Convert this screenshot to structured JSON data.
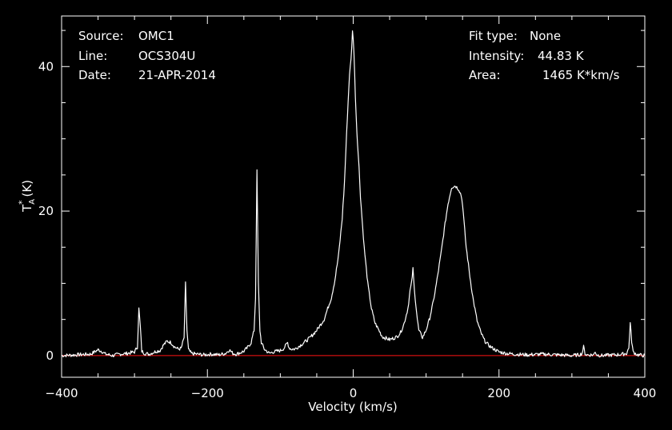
{
  "chart_data": {
    "type": "line",
    "xlabel": "Velocity (km/s)",
    "ylabel_main": "T",
    "ylabel_sub": "A",
    "ylabel_sup": "*",
    "ylabel_unit": "(K)",
    "xlim": [
      -400,
      400
    ],
    "ylim": [
      -3,
      47
    ],
    "xticks": [
      -400,
      -200,
      0,
      200,
      400
    ],
    "yticks": [
      0,
      20,
      40
    ],
    "grid": false,
    "colors": {
      "background": "#000000",
      "spectrum": "#ffffff",
      "baseline": "#d01010",
      "axes": "#ffffff"
    },
    "baseline_value": 0,
    "info_left": [
      {
        "key": "Source:",
        "value": "OMC1"
      },
      {
        "key": "Line:",
        "value": "OCS304U"
      },
      {
        "key": "Date:",
        "value": "21-APR-2014"
      }
    ],
    "info_right": [
      {
        "key": "Fit type:",
        "value": "None"
      },
      {
        "key": "Intensity:",
        "value": "44.83 K"
      },
      {
        "key": "Area:",
        "value": "1465 K*km/s"
      }
    ],
    "series": [
      {
        "x": [
          -400,
          -380,
          -360,
          -350,
          -345,
          -340,
          -330,
          -320,
          -310,
          -300,
          -296,
          -294,
          -292,
          -290,
          -286,
          -280,
          -270,
          -265,
          -260,
          -255,
          -250,
          -245,
          -240,
          -236,
          -232,
          -230,
          -228,
          -226,
          -222,
          -215,
          -205,
          -195,
          -185,
          -175,
          -170,
          -165,
          -160,
          -150,
          -145,
          -140,
          -136,
          -134,
          -132,
          -130,
          -128,
          -126,
          -122,
          -115,
          -110,
          -100,
          -95,
          -92,
          -90,
          -88,
          -85,
          -80,
          -70,
          -60,
          -50,
          -40,
          -30,
          -25,
          -20,
          -15,
          -12,
          -8,
          -5,
          -3,
          -1,
          0,
          1,
          3,
          5,
          8,
          10,
          15,
          20,
          25,
          30,
          40,
          50,
          60,
          65,
          70,
          75,
          78,
          80,
          82,
          84,
          86,
          88,
          90,
          95,
          100,
          105,
          110,
          115,
          120,
          125,
          130,
          135,
          140,
          145,
          148,
          150,
          152,
          155,
          160,
          165,
          170,
          175,
          180,
          185,
          190,
          195,
          200,
          210,
          220,
          240,
          260,
          280,
          300,
          310,
          314,
          316,
          318,
          320,
          330,
          332,
          334,
          340,
          360,
          370,
          375,
          378,
          380,
          382,
          384,
          390,
          400
        ],
        "y": [
          0.0,
          0.1,
          0.2,
          0.8,
          0.6,
          0.2,
          0.0,
          0.2,
          0.3,
          0.5,
          1.2,
          6.5,
          4.0,
          0.6,
          0.3,
          0.2,
          0.6,
          0.7,
          1.5,
          2.0,
          1.8,
          1.2,
          0.9,
          1.0,
          2.5,
          10.0,
          3.5,
          0.8,
          0.3,
          0.2,
          0.1,
          0.2,
          0.1,
          0.3,
          0.8,
          0.3,
          0.2,
          0.6,
          1.1,
          1.8,
          3.5,
          8.0,
          25.5,
          10.0,
          3.5,
          1.8,
          0.9,
          0.3,
          0.5,
          0.7,
          1.0,
          1.5,
          1.8,
          1.1,
          0.9,
          0.9,
          1.6,
          2.4,
          3.5,
          5.0,
          8.0,
          10.5,
          14.0,
          19.0,
          24.0,
          33.0,
          39.0,
          41.0,
          44.83,
          44.0,
          42.0,
          36.0,
          31.0,
          26.0,
          22.0,
          15.0,
          10.0,
          6.5,
          4.5,
          2.6,
          2.2,
          2.6,
          3.2,
          4.5,
          6.5,
          9.0,
          10.0,
          12.0,
          9.0,
          7.0,
          5.0,
          3.5,
          2.5,
          3.5,
          5.2,
          7.5,
          10.5,
          13.8,
          17.5,
          21.0,
          23.3,
          23.5,
          23.0,
          22.2,
          21.0,
          18.5,
          15.0,
          11.0,
          7.5,
          4.8,
          3.2,
          2.1,
          1.5,
          1.1,
          0.8,
          0.5,
          0.3,
          0.2,
          0.1,
          0.2,
          0.1,
          0.0,
          0.1,
          0.3,
          1.2,
          0.3,
          0.1,
          0.1,
          0.6,
          0.1,
          0.0,
          0.1,
          0.2,
          0.3,
          1.0,
          4.5,
          2.0,
          0.5,
          0.1,
          0.0
        ]
      }
    ]
  }
}
